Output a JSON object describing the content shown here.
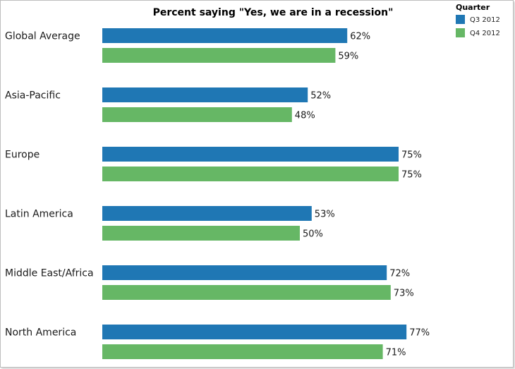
{
  "chart_data": {
    "type": "bar",
    "orientation": "horizontal",
    "title": "Percent saying \"Yes, we are in a recession\"",
    "xlabel": "",
    "ylabel": "",
    "xlim": [
      0,
      100
    ],
    "grid": false,
    "legend": {
      "title": "Quarter",
      "position": "top-right"
    },
    "categories": [
      "Global Average",
      "Asia-Pacific",
      "Europe",
      "Latin America",
      "Middle East/Africa",
      "North America"
    ],
    "series": [
      {
        "name": "Q3 2012",
        "color": "#1f77b4",
        "values": [
          62,
          52,
          75,
          53,
          72,
          77
        ]
      },
      {
        "name": "Q4 2012",
        "color": "#66b765",
        "values": [
          59,
          48,
          75,
          50,
          73,
          71
        ]
      }
    ],
    "value_suffix": "%"
  }
}
